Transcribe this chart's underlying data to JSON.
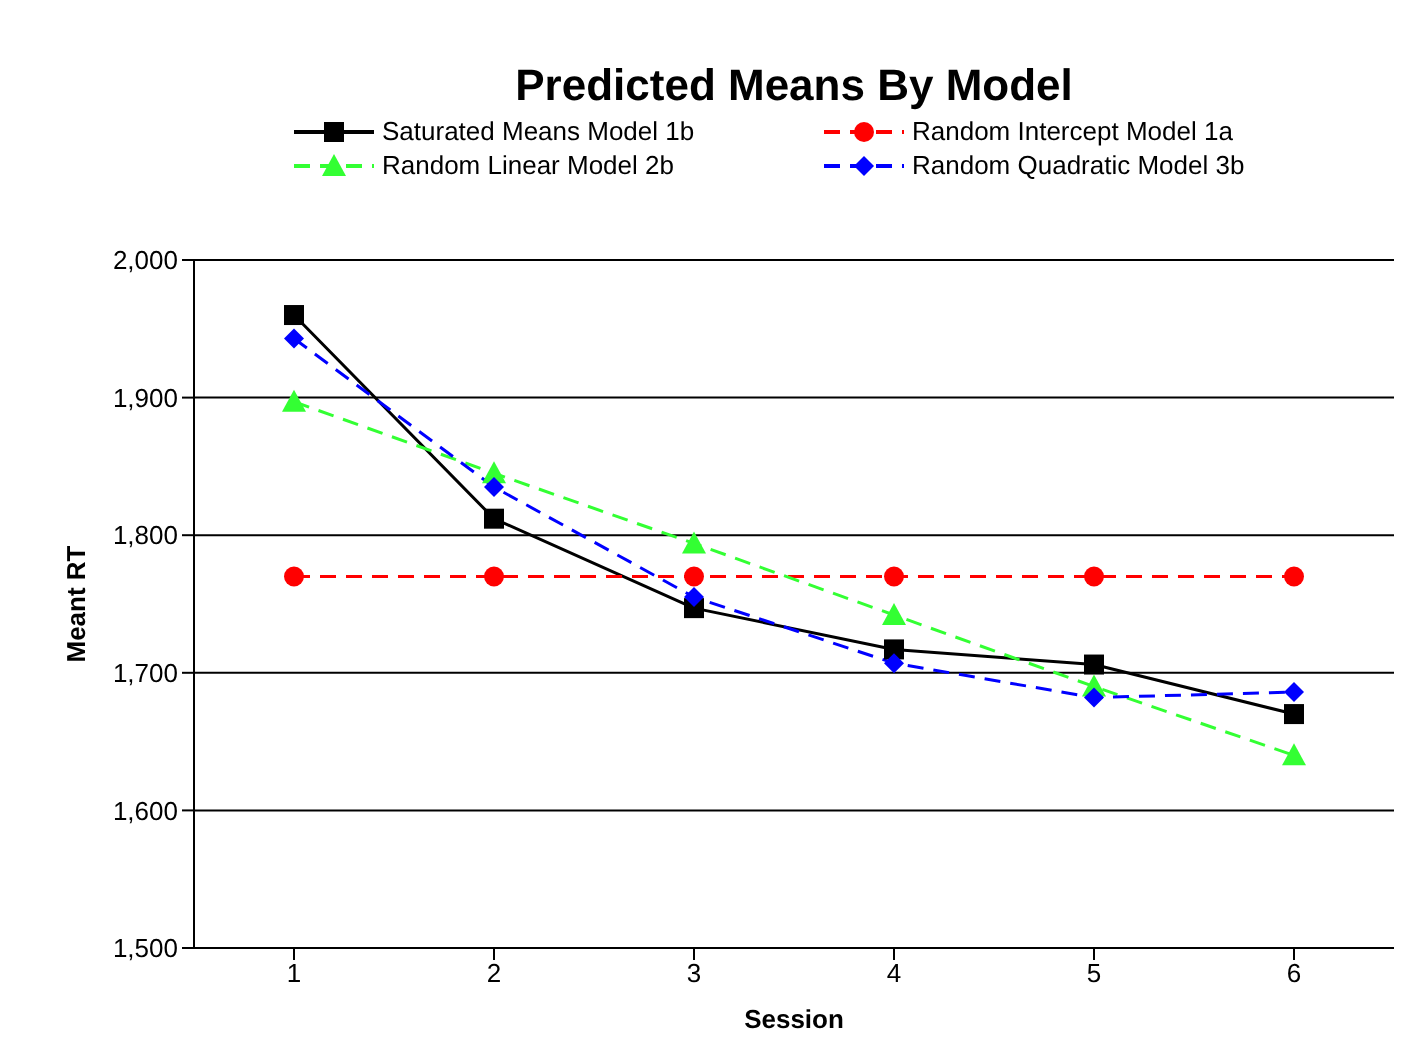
{
  "chart_data": {
    "type": "line",
    "title": "Predicted Means By Model",
    "xlabel": "Session",
    "ylabel": "Meant RT",
    "categories": [
      "1",
      "2",
      "3",
      "4",
      "5",
      "6"
    ],
    "series": [
      {
        "name": "Saturated Means Model 1b",
        "color": "#000000",
        "marker": "square",
        "line_style": "solid",
        "values": [
          1960,
          1812,
          1747,
          1717,
          1706,
          1670
        ]
      },
      {
        "name": "Random Intercept Model 1a",
        "color": "#ff0000",
        "marker": "circle",
        "line_style": "dashed",
        "values": [
          1770,
          1770,
          1770,
          1770,
          1770,
          1770
        ]
      },
      {
        "name": "Random Linear Model 2b",
        "color": "#33ff33",
        "marker": "triangle",
        "line_style": "dashed",
        "values": [
          1897,
          1845,
          1794,
          1742,
          1690,
          1640
        ]
      },
      {
        "name": "Random Quadratic Model 3b",
        "color": "#0000ff",
        "marker": "diamond",
        "line_style": "dashed",
        "values": [
          1943,
          1835,
          1755,
          1707,
          1682,
          1686
        ]
      }
    ],
    "ylim": [
      1500,
      2000
    ],
    "yticks": [
      {
        "value": 1500,
        "label": "1,500"
      },
      {
        "value": 1600,
        "label": "1,600"
      },
      {
        "value": 1700,
        "label": "1,700"
      },
      {
        "value": 1800,
        "label": "1,800"
      },
      {
        "value": 1900,
        "label": "1,900"
      },
      {
        "value": 2000,
        "label": "2,000"
      }
    ],
    "grid": "y",
    "legend": "top"
  }
}
